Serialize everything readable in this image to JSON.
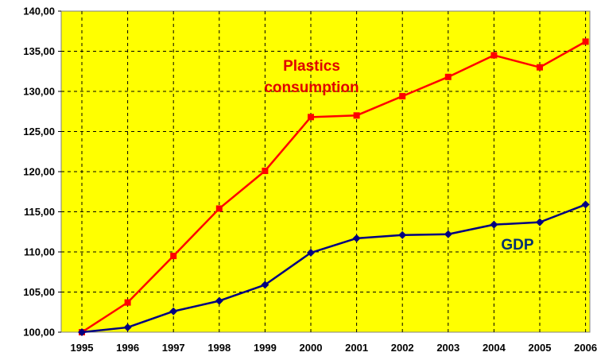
{
  "chart_data": {
    "type": "line",
    "x": [
      "1995",
      "1996",
      "1997",
      "1998",
      "1999",
      "2000",
      "2001",
      "2002",
      "2003",
      "2004",
      "2005",
      "2006"
    ],
    "ylim": [
      100,
      140
    ],
    "y_ticks": [
      "100,00",
      "105,00",
      "110,00",
      "115,00",
      "120,00",
      "125,00",
      "130,00",
      "135,00",
      "140,00"
    ],
    "grid": true,
    "series": [
      {
        "name": "Plastics consumption",
        "label_lines": [
          "Plastics",
          "consumption"
        ],
        "color": "#ff0000",
        "marker": "square",
        "values": [
          100.0,
          103.7,
          109.5,
          115.4,
          120.1,
          126.8,
          127.0,
          129.4,
          131.8,
          134.5,
          133.0,
          136.2
        ]
      },
      {
        "name": "GDP",
        "label_lines": [
          "GDP"
        ],
        "color": "#000080",
        "marker": "diamond",
        "values": [
          100.0,
          100.6,
          102.6,
          103.9,
          105.9,
          109.9,
          111.7,
          112.1,
          112.2,
          113.4,
          113.7,
          115.9
        ]
      }
    ],
    "plot_background": "#ffff00"
  }
}
